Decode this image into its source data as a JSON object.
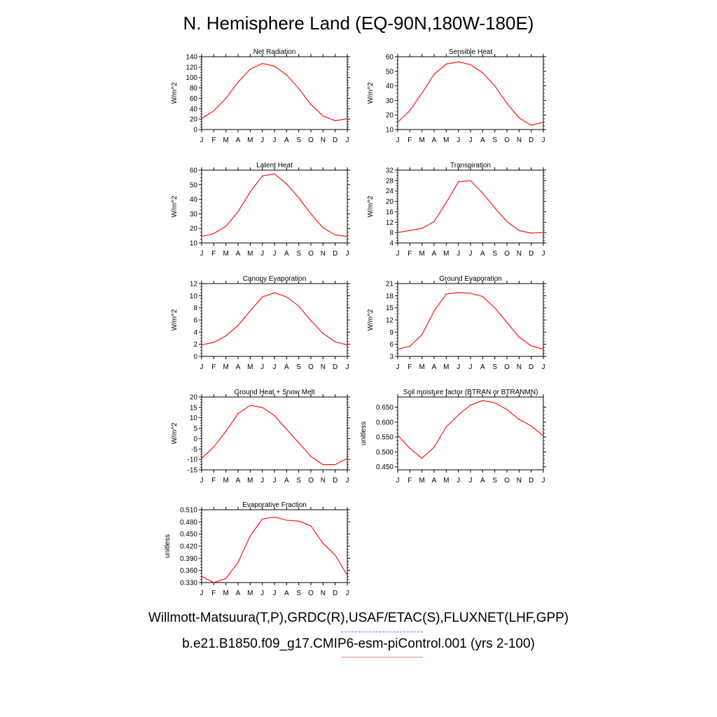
{
  "figure": {
    "title": "N. Hemisphere Land (EQ-90N,180W-180E)",
    "footer": {
      "obs_sources": "Willmott-Matsuura(T,P),GRDC(R),USAF/ETAC(S),FLUXNET(LHF,GPP)",
      "model_case": "b.e21.B1850.f09_g17.CMIP6-esm-piControl.001 (yrs 2-100)",
      "obs_line_color": "#6a6af0",
      "model_line_color": "#f08a8a"
    }
  },
  "chart_data": [
    {
      "type": "line",
      "title": "Net Radiation",
      "xlabel": "",
      "ylabel": "W/m^2",
      "categories": [
        "J",
        "F",
        "M",
        "A",
        "M",
        "J",
        "J",
        "A",
        "S",
        "O",
        "N",
        "D",
        "J"
      ],
      "ylim": [
        0,
        140
      ],
      "yticks": [
        0,
        20,
        40,
        60,
        80,
        100,
        120,
        140
      ],
      "ytick_decimals": 0,
      "series": [
        {
          "color": "#ff0000",
          "values": [
            21,
            36,
            60,
            91,
            116,
            127,
            122,
            105,
            79,
            48,
            26,
            17,
            21
          ]
        }
      ]
    },
    {
      "type": "line",
      "title": "Sensible Heat",
      "xlabel": "",
      "ylabel": "W/m^2",
      "categories": [
        "J",
        "F",
        "M",
        "A",
        "M",
        "J",
        "J",
        "A",
        "S",
        "O",
        "N",
        "D",
        "J"
      ],
      "ylim": [
        10,
        60
      ],
      "yticks": [
        10,
        20,
        30,
        40,
        50,
        60
      ],
      "ytick_decimals": 0,
      "series": [
        {
          "color": "#ff0000",
          "values": [
            15,
            23,
            35,
            48,
            55,
            56.5,
            54.5,
            49,
            40,
            28,
            18,
            13,
            15
          ]
        }
      ]
    },
    {
      "type": "line",
      "title": "Latent Heat",
      "xlabel": "",
      "ylabel": "W/m^2",
      "categories": [
        "J",
        "F",
        "M",
        "A",
        "M",
        "J",
        "J",
        "A",
        "S",
        "O",
        "N",
        "D",
        "J"
      ],
      "ylim": [
        10,
        60
      ],
      "yticks": [
        10,
        20,
        30,
        40,
        50,
        60
      ],
      "ytick_decimals": 0,
      "series": [
        {
          "color": "#ff0000",
          "values": [
            14.5,
            16.5,
            21.5,
            31.5,
            45,
            56,
            57.5,
            50.5,
            41,
            30,
            20.5,
            15.5,
            14.5
          ]
        }
      ]
    },
    {
      "type": "line",
      "title": "Transpiration",
      "xlabel": "",
      "ylabel": "W/m^2",
      "categories": [
        "J",
        "F",
        "M",
        "A",
        "M",
        "J",
        "J",
        "A",
        "S",
        "O",
        "N",
        "D",
        "J"
      ],
      "ylim": [
        4,
        32
      ],
      "yticks": [
        4,
        8,
        12,
        16,
        20,
        24,
        28,
        32
      ],
      "ytick_decimals": 0,
      "series": [
        {
          "color": "#ff0000",
          "values": [
            8,
            8.8,
            9.6,
            12.2,
            19.5,
            27.5,
            28,
            23.2,
            17.5,
            12.2,
            8.8,
            7.8,
            8
          ]
        }
      ]
    },
    {
      "type": "line",
      "title": "Canopy Evaporation",
      "xlabel": "",
      "ylabel": "W/m^2",
      "categories": [
        "J",
        "F",
        "M",
        "A",
        "M",
        "J",
        "J",
        "A",
        "S",
        "O",
        "N",
        "D",
        "J"
      ],
      "ylim": [
        0,
        12
      ],
      "yticks": [
        0,
        2,
        4,
        6,
        8,
        10,
        12
      ],
      "ytick_decimals": 0,
      "series": [
        {
          "color": "#ff0000",
          "values": [
            1.9,
            2.3,
            3.4,
            5.1,
            7.5,
            9.8,
            10.5,
            9.8,
            8.3,
            5.9,
            3.8,
            2.4,
            1.9
          ]
        }
      ]
    },
    {
      "type": "line",
      "title": "Ground Evaporation",
      "xlabel": "",
      "ylabel": "W/m^2",
      "categories": [
        "J",
        "F",
        "M",
        "A",
        "M",
        "J",
        "J",
        "A",
        "S",
        "O",
        "N",
        "D",
        "J"
      ],
      "ylim": [
        3,
        21
      ],
      "yticks": [
        3,
        6,
        9,
        12,
        15,
        18,
        21
      ],
      "ytick_decimals": 0,
      "series": [
        {
          "color": "#ff0000",
          "values": [
            4.8,
            5.5,
            8.4,
            14.2,
            18.4,
            18.8,
            18.6,
            17.8,
            15,
            11.4,
            7.8,
            5.6,
            4.8
          ]
        }
      ]
    },
    {
      "type": "line",
      "title": "Ground Heat + Snow Melt",
      "xlabel": "",
      "ylabel": "W/m^2",
      "categories": [
        "J",
        "F",
        "M",
        "A",
        "M",
        "J",
        "J",
        "A",
        "S",
        "O",
        "N",
        "D",
        "J"
      ],
      "ylim": [
        -15,
        20
      ],
      "yticks": [
        -15,
        -10,
        -5,
        0,
        5,
        10,
        15,
        20
      ],
      "ytick_decimals": 0,
      "series": [
        {
          "color": "#ff0000",
          "values": [
            -9.5,
            -4,
            3.5,
            12,
            16,
            15,
            11,
            4.5,
            -2,
            -8.5,
            -12.5,
            -12.5,
            -9.5
          ]
        }
      ]
    },
    {
      "type": "line",
      "title": "Soil moisture factor (BTRAN or BTRANMN)",
      "xlabel": "",
      "ylabel": "unitless",
      "categories": [
        "J",
        "F",
        "M",
        "A",
        "M",
        "J",
        "J",
        "A",
        "S",
        "O",
        "N",
        "D",
        "J"
      ],
      "ylim": [
        0.44,
        0.684
      ],
      "yticks": [
        0.45,
        0.5,
        0.55,
        0.6,
        0.65
      ],
      "ytick_decimals": 3,
      "series": [
        {
          "color": "#ff0000",
          "values": [
            0.556,
            0.512,
            0.479,
            0.516,
            0.584,
            0.624,
            0.657,
            0.672,
            0.665,
            0.642,
            0.609,
            0.587,
            0.554
          ]
        }
      ]
    },
    {
      "type": "line",
      "title": "Evaporative Fraction",
      "xlabel": "",
      "ylabel": "unitless",
      "categories": [
        "J",
        "F",
        "M",
        "A",
        "M",
        "J",
        "J",
        "A",
        "S",
        "O",
        "N",
        "D",
        "J"
      ],
      "ylim": [
        0.33,
        0.51
      ],
      "yticks": [
        0.33,
        0.36,
        0.39,
        0.42,
        0.45,
        0.48,
        0.51
      ],
      "ytick_decimals": 3,
      "series": [
        {
          "color": "#ff0000",
          "values": [
            0.345,
            0.33,
            0.34,
            0.38,
            0.445,
            0.487,
            0.492,
            0.484,
            0.482,
            0.47,
            0.427,
            0.398,
            0.348
          ]
        }
      ]
    }
  ]
}
